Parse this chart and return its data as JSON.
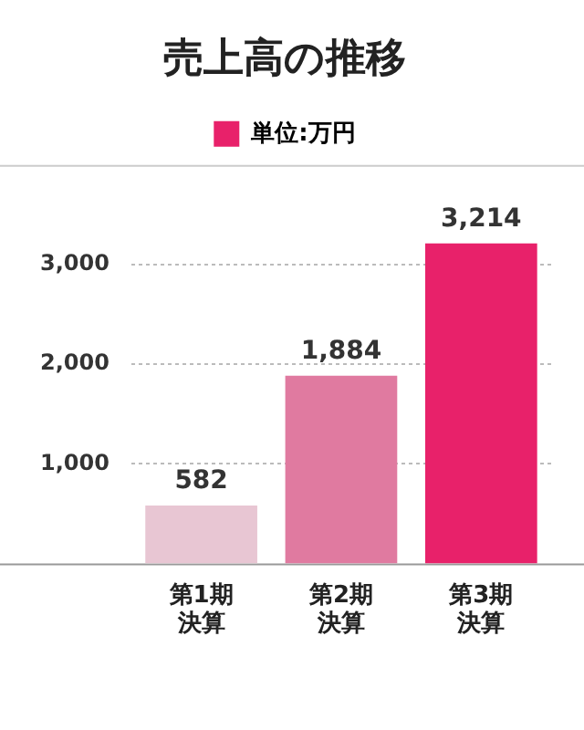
{
  "chart_data": {
    "type": "bar",
    "title": "売上高の推移",
    "categories": [
      "第1期決算",
      "第2期決算",
      "第3期決算"
    ],
    "series": [
      {
        "name": "単位:万円",
        "color": "#e8216a",
        "colors": [
          "#e8c6d3",
          "#e07aa0",
          "#e8216a"
        ],
        "values": [
          582,
          1884,
          3214
        ],
        "value_labels": [
          "582",
          "1,884",
          "3,214"
        ]
      }
    ],
    "ylim": [
      0,
      4000
    ],
    "yticks": [
      {
        "value": 1000,
        "label": "1,000"
      },
      {
        "value": 2000,
        "label": "2,000"
      },
      {
        "value": 3000,
        "label": "3,000"
      }
    ],
    "grid": "y",
    "legend": "top"
  }
}
